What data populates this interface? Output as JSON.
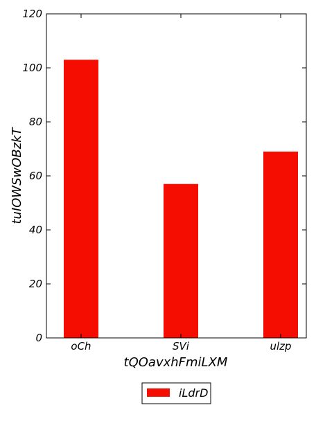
{
  "chart_data": {
    "type": "bar",
    "title": "",
    "xlabel": "tQOavxhFmiLXM",
    "ylabel": "tuIOWSwOBzkT",
    "categories": [
      "oCh",
      "SVi",
      "ulzp"
    ],
    "series": [
      {
        "name": "iLdrD",
        "values": [
          103,
          57,
          69
        ],
        "color": "#f40d00"
      }
    ],
    "ylim": [
      0,
      120
    ],
    "yticks": [
      0,
      20,
      40,
      60,
      80,
      100,
      120
    ],
    "grid": false,
    "legend_position": "bottom-center"
  }
}
